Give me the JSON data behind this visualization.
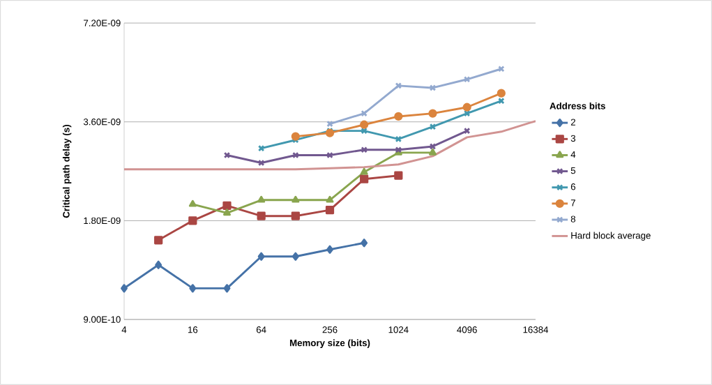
{
  "chart_data": {
    "type": "line",
    "xlabel": "Memory size (bits)",
    "ylabel": "Critical path delay (s)",
    "legend_title": "Address bits",
    "log": "xy",
    "grid": "y",
    "legend": "right",
    "xlim": [
      4,
      16384
    ],
    "xticks": [
      4,
      16,
      64,
      256,
      1024,
      4096,
      16384
    ],
    "ylim": [
      9e-10,
      7.2e-09
    ],
    "yticks": [
      {
        "value": 9e-10,
        "label": "9.00E-10"
      },
      {
        "value": 1.8e-09,
        "label": "1.80E-09"
      },
      {
        "value": 3.6e-09,
        "label": "3.60E-09"
      },
      {
        "value": 7.2e-09,
        "label": "7.20E-09"
      }
    ],
    "series": [
      {
        "name": "2",
        "color": "#4572a7",
        "marker": "diamond",
        "x": [
          4,
          8,
          16,
          32,
          64,
          128,
          256,
          512
        ],
        "values": [
          1.12e-09,
          1.32e-09,
          1.12e-09,
          1.12e-09,
          1.4e-09,
          1.4e-09,
          1.47e-09,
          1.54e-09
        ]
      },
      {
        "name": "3",
        "color": "#aa4643",
        "marker": "square",
        "x": [
          8,
          16,
          32,
          64,
          128,
          256,
          512,
          1024
        ],
        "values": [
          1.57e-09,
          1.8e-09,
          2e-09,
          1.86e-09,
          1.86e-09,
          1.94e-09,
          2.41e-09,
          2.47e-09
        ]
      },
      {
        "name": "4",
        "color": "#89a54e",
        "marker": "triangle",
        "x": [
          16,
          32,
          64,
          128,
          256,
          512,
          1024,
          2048
        ],
        "values": [
          2.02e-09,
          1.9e-09,
          2.08e-09,
          2.08e-09,
          2.08e-09,
          2.53e-09,
          2.9e-09,
          2.9e-09
        ]
      },
      {
        "name": "5",
        "color": "#71588f",
        "marker": "cross",
        "x": [
          32,
          64,
          128,
          256,
          512,
          1024,
          2048,
          4096
        ],
        "values": [
          2.85e-09,
          2.7e-09,
          2.85e-09,
          2.85e-09,
          2.96e-09,
          2.96e-09,
          3.03e-09,
          3.38e-09
        ]
      },
      {
        "name": "6",
        "color": "#4198af",
        "marker": "cross",
        "x": [
          64,
          128,
          256,
          512,
          1024,
          2048,
          4096,
          8192
        ],
        "values": [
          2.99e-09,
          3.17e-09,
          3.38e-09,
          3.38e-09,
          3.19e-09,
          3.48e-09,
          3.82e-09,
          4.17e-09
        ]
      },
      {
        "name": "7",
        "color": "#db843d",
        "marker": "circle",
        "x": [
          128,
          256,
          512,
          1024,
          2048,
          4096,
          8192
        ],
        "values": [
          3.25e-09,
          3.33e-09,
          3.53e-09,
          3.74e-09,
          3.82e-09,
          3.99e-09,
          4.4e-09
        ]
      },
      {
        "name": "8",
        "color": "#93a9cf",
        "marker": "cross",
        "x": [
          256,
          512,
          1024,
          2048,
          4096,
          8192
        ],
        "values": [
          3.55e-09,
          3.82e-09,
          4.64e-09,
          4.57e-09,
          4.85e-09,
          5.22e-09
        ]
      },
      {
        "name": "Hard block average",
        "color": "#d19392",
        "marker": "none",
        "x": [
          4,
          8,
          16,
          32,
          64,
          128,
          256,
          512,
          1024,
          2048,
          4096,
          8192,
          16384
        ],
        "values": [
          2.58e-09,
          2.58e-09,
          2.58e-09,
          2.58e-09,
          2.58e-09,
          2.58e-09,
          2.6e-09,
          2.62e-09,
          2.67e-09,
          2.83e-09,
          3.23e-09,
          3.36e-09,
          3.62e-09
        ]
      }
    ]
  }
}
